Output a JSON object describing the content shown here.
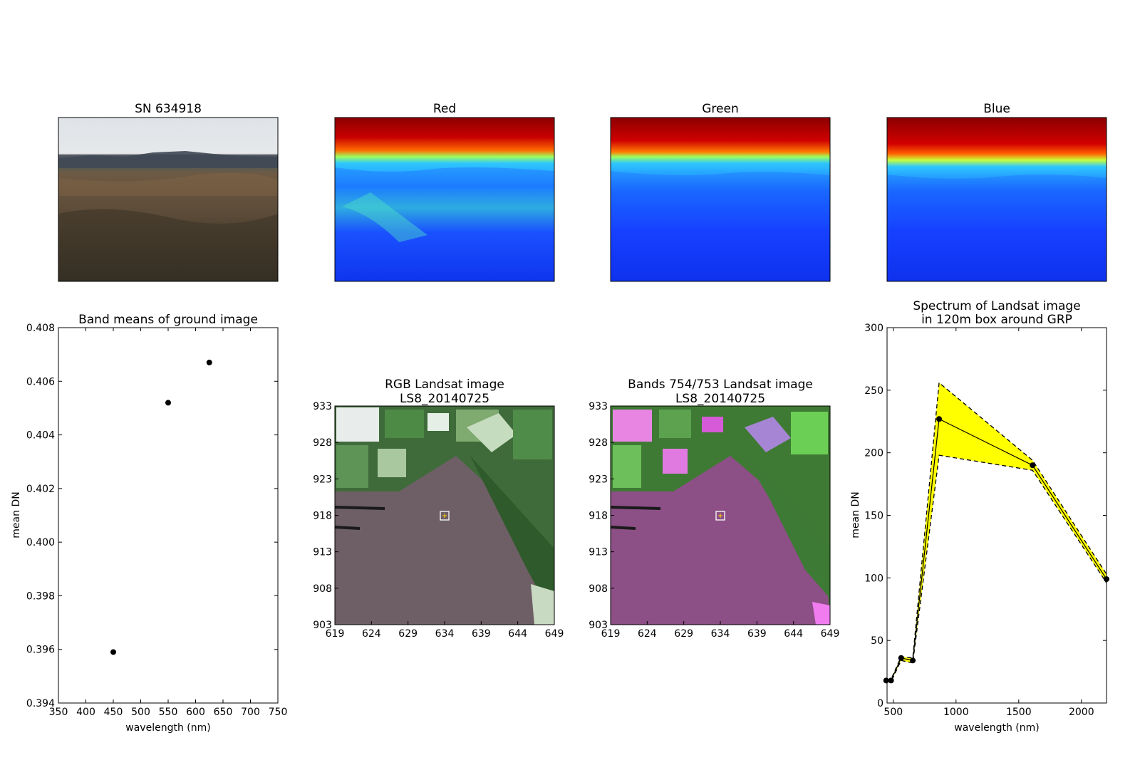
{
  "panels": {
    "photo_title": "SN 634918",
    "red_title": "Red",
    "green_title": "Green",
    "blue_title": "Blue",
    "rgb_title_line1": "RGB Landsat image",
    "rgb_title_line2": "LS8_20140725",
    "false_title_line1": "Bands 754/753 Landsat image",
    "false_title_line2": "LS8_20140725",
    "map_xticks": [
      "619",
      "624",
      "629",
      "634",
      "639",
      "644",
      "649"
    ],
    "map_yticks": [
      "933",
      "928",
      "923",
      "918",
      "913",
      "908",
      "903"
    ]
  },
  "colors": {
    "sky_red": "#8b0000",
    "jet_blue": "#0a1ee6",
    "spectrum_fill": "#ffff00",
    "heath_rgb": "#6e5f66",
    "heath_false": "#8c4f86"
  },
  "chart_data": [
    {
      "type": "scatter",
      "title": "Band means of ground image",
      "xlabel": "wavelength (nm)",
      "ylabel": "mean DN",
      "xlim": [
        350,
        750
      ],
      "ylim": [
        0.394,
        0.408
      ],
      "xticks": [
        350,
        400,
        450,
        500,
        550,
        600,
        650,
        700,
        750
      ],
      "yticks": [
        0.394,
        0.396,
        0.398,
        0.4,
        0.402,
        0.404,
        0.406,
        0.408
      ],
      "ytick_labels": [
        "0.394",
        "0.396",
        "0.398",
        "0.400",
        "0.402",
        "0.404",
        "0.406",
        "0.408"
      ],
      "x": [
        450,
        550,
        625
      ],
      "y": [
        0.3959,
        0.4052,
        0.4067
      ]
    },
    {
      "type": "line",
      "title_line1": "Spectrum of Landsat image",
      "title_line2": "in 120m box around GRP",
      "xlabel": "wavelength (nm)",
      "ylabel": "mean DN",
      "xlim": [
        450,
        2200
      ],
      "ylim": [
        0,
        300
      ],
      "xticks": [
        500,
        1000,
        1500,
        2000
      ],
      "yticks": [
        0,
        50,
        100,
        150,
        200,
        250,
        300
      ],
      "x": [
        443,
        482,
        562,
        655,
        865,
        1610,
        2200
      ],
      "y": [
        18,
        18,
        36,
        34,
        227,
        190,
        99
      ],
      "upper": [
        19,
        19,
        37,
        36,
        256,
        194,
        103
      ],
      "lower": [
        17,
        17,
        34,
        32,
        198,
        186,
        96
      ]
    }
  ]
}
